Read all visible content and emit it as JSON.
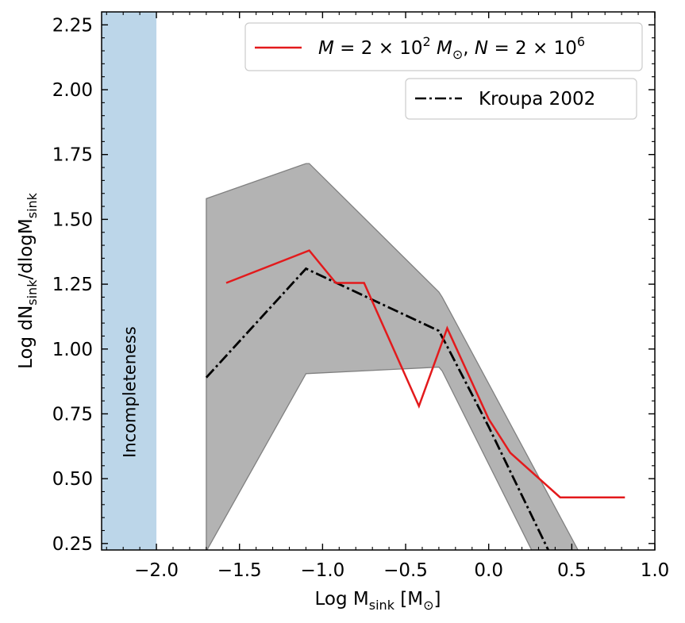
{
  "chart_data": {
    "type": "line",
    "xlabel": "Log M",
    "xlabel_sub": "sink",
    "xlabel_unit_open": " [M",
    "xlabel_unit_sub": "⊙",
    "xlabel_unit_close": "]",
    "ylabel": {
      "p1": "Log dN",
      "s1": "sink",
      "p2": "/dlogM",
      "s2": "sink"
    },
    "xlim": [
      -2.33,
      1.0
    ],
    "ylim": [
      0.225,
      2.3
    ],
    "xticks": [
      {
        "v": -2.0,
        "label": "−2.0"
      },
      {
        "v": -1.5,
        "label": "−1.5"
      },
      {
        "v": -1.0,
        "label": "−1.0"
      },
      {
        "v": -0.5,
        "label": "−0.5"
      },
      {
        "v": 0.0,
        "label": "0.0"
      },
      {
        "v": 0.5,
        "label": "0.5"
      },
      {
        "v": 1.0,
        "label": "1.0"
      }
    ],
    "yticks": [
      {
        "v": 0.25,
        "label": "0.25"
      },
      {
        "v": 0.5,
        "label": "0.50"
      },
      {
        "v": 0.75,
        "label": "0.75"
      },
      {
        "v": 1.0,
        "label": "1.00"
      },
      {
        "v": 1.25,
        "label": "1.25"
      },
      {
        "v": 1.5,
        "label": "1.50"
      },
      {
        "v": 1.75,
        "label": "1.75"
      },
      {
        "v": 2.0,
        "label": "2.00"
      },
      {
        "v": 2.25,
        "label": "2.25"
      }
    ],
    "incompleteness": {
      "x_range": [
        -2.33,
        -2.0
      ],
      "label": "Incompleteness",
      "color": "#bcd6e9"
    },
    "band": {
      "color": "#b3b3b3",
      "edge_color": "#808080",
      "upper": [
        [
          -1.7,
          1.58
        ],
        [
          -1.1,
          1.715
        ],
        [
          -1.08,
          1.715
        ],
        [
          -0.3,
          1.22
        ],
        [
          -0.28,
          1.2
        ],
        [
          0.55,
          0.21
        ]
      ],
      "lower": [
        [
          -1.7,
          0.21
        ],
        [
          -1.7,
          0.22
        ],
        [
          -1.1,
          0.905
        ],
        [
          -0.3,
          0.93
        ],
        [
          -0.28,
          0.915
        ],
        [
          0.27,
          0.21
        ]
      ]
    },
    "series": [
      {
        "name": "Kroupa 2002",
        "color": "#000000",
        "dash": "dashdot",
        "points": [
          [
            -1.7,
            0.89
          ],
          [
            -1.1,
            1.31
          ],
          [
            -0.3,
            1.07
          ],
          [
            -0.25,
            1.01
          ],
          [
            0.0,
            0.7
          ],
          [
            0.37,
            0.21
          ]
        ]
      },
      {
        "name_parts": {
          "a": "M",
          "b": " = 2 × 10",
          "b_sup": "2",
          "c": " M",
          "c_sub": "⊙",
          "d": ", ",
          "e": "N",
          "f": " = 2 × 10",
          "f_sup": "6"
        },
        "color": "#e31a1c",
        "dash": "solid",
        "points": [
          [
            -1.58,
            1.255
          ],
          [
            -1.08,
            1.38
          ],
          [
            -0.92,
            1.255
          ],
          [
            -0.75,
            1.255
          ],
          [
            -0.42,
            0.78
          ],
          [
            -0.25,
            1.08
          ],
          [
            0.0,
            0.73
          ],
          [
            0.13,
            0.6
          ],
          [
            0.43,
            0.428
          ],
          [
            0.82,
            0.428
          ]
        ]
      }
    ],
    "legend_placement": "top-right"
  }
}
